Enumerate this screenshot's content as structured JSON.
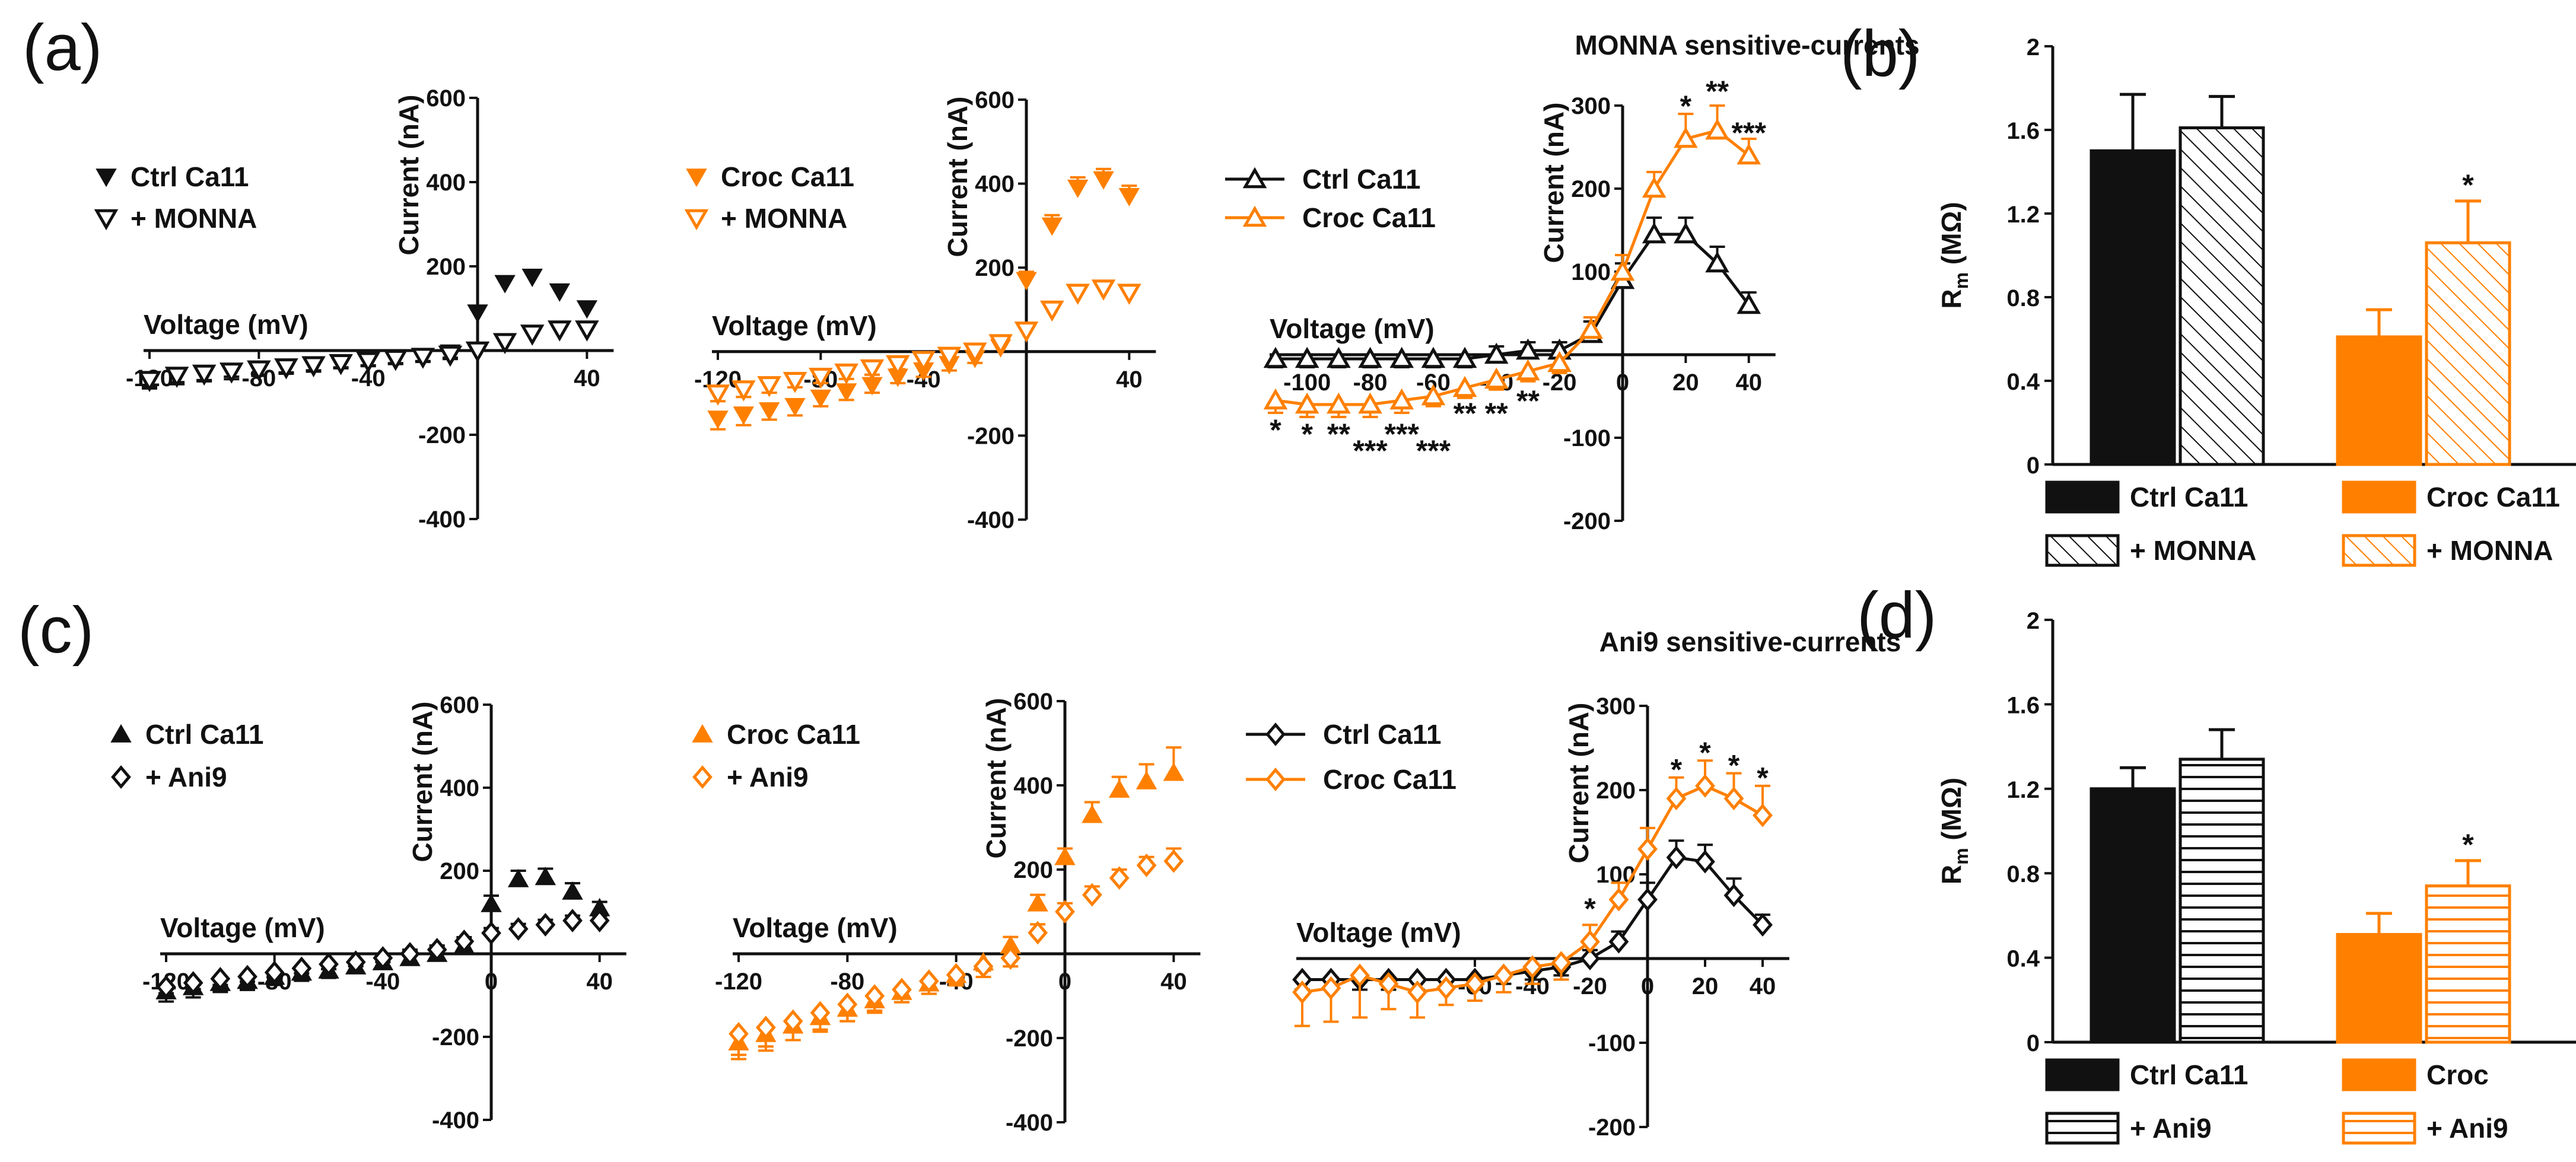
{
  "colors": {
    "ctrl": "#111111",
    "croc": "#ff8000"
  },
  "chart_data": [
    {
      "type": "scatter",
      "panel": "a",
      "id": "a1",
      "ylim": [
        -400,
        600
      ],
      "xlim": [
        -120,
        40
      ],
      "ylabel": "Current (nA)",
      "xlabel": "Voltage (mV)",
      "xticks": [
        "-120",
        "-80",
        "-40",
        "40"
      ],
      "yticks": [
        "600",
        "400",
        "200",
        "-200",
        "-400"
      ],
      "panel_label": "(a)",
      "legend": [
        "Ctrl Ca11",
        "+ MONNA"
      ],
      "series": [
        {
          "name": "Ctrl Ca11",
          "marker": "tri-down-filled",
          "color": "ctrl",
          "x": [
            -120,
            -110,
            -100,
            -90,
            -80,
            -70,
            -60,
            -50,
            -40,
            -30,
            -20,
            -10,
            0,
            10,
            20,
            30,
            40
          ],
          "y": [
            -70,
            -60,
            -55,
            -50,
            -45,
            -40,
            -35,
            -30,
            -25,
            -20,
            -15,
            -5,
            90,
            160,
            175,
            140,
            100
          ],
          "err": [
            20,
            20,
            18,
            18,
            15,
            15,
            15,
            12,
            12,
            12,
            12,
            12,
            15,
            15,
            15,
            15,
            15
          ]
        },
        {
          "name": "+ MONNA",
          "marker": "tri-down-open",
          "color": "ctrl",
          "x": [
            -120,
            -110,
            -100,
            -90,
            -80,
            -70,
            -60,
            -50,
            -40,
            -30,
            -20,
            -10,
            0,
            10,
            20,
            30,
            40
          ],
          "y": [
            -70,
            -60,
            -55,
            -50,
            -45,
            -40,
            -35,
            -30,
            -25,
            -20,
            -15,
            -10,
            0,
            20,
            40,
            50,
            50
          ],
          "err": [
            15,
            15,
            15,
            12,
            12,
            12,
            12,
            10,
            10,
            10,
            10,
            10,
            10,
            10,
            10,
            10,
            12
          ]
        }
      ]
    },
    {
      "type": "scatter",
      "panel": "a",
      "id": "a2",
      "ylim": [
        -400,
        600
      ],
      "xlim": [
        -120,
        40
      ],
      "ylabel": "Current (nA)",
      "xlabel": "Voltage (mV)",
      "xticks": [
        "-120",
        "-80",
        "-40",
        "40"
      ],
      "yticks": [
        "600",
        "400",
        "200",
        "-200",
        "-400"
      ],
      "legend": [
        "Croc Ca11",
        "+ MONNA"
      ],
      "series": [
        {
          "name": "Croc Ca11",
          "marker": "tri-down-filled",
          "color": "croc",
          "x": [
            -120,
            -110,
            -100,
            -90,
            -80,
            -70,
            -60,
            -50,
            -40,
            -30,
            -20,
            -10,
            0,
            10,
            20,
            30,
            40
          ],
          "y": [
            -160,
            -150,
            -140,
            -130,
            -110,
            -95,
            -80,
            -60,
            -45,
            -30,
            -15,
            10,
            170,
            300,
            390,
            410,
            370
          ],
          "err": [
            25,
            25,
            22,
            22,
            20,
            20,
            18,
            15,
            15,
            15,
            12,
            12,
            20,
            25,
            25,
            25,
            25
          ]
        },
        {
          "name": "+ MONNA",
          "marker": "tri-down-open",
          "color": "croc",
          "x": [
            -120,
            -110,
            -100,
            -90,
            -80,
            -70,
            -60,
            -50,
            -40,
            -30,
            -20,
            -10,
            0,
            10,
            20,
            30,
            40
          ],
          "y": [
            -100,
            -90,
            -80,
            -70,
            -60,
            -50,
            -40,
            -30,
            -20,
            -10,
            0,
            20,
            50,
            100,
            140,
            150,
            140
          ],
          "err": [
            18,
            18,
            18,
            15,
            15,
            15,
            15,
            12,
            12,
            12,
            12,
            12,
            15,
            15,
            15,
            15,
            15
          ]
        }
      ]
    },
    {
      "type": "line",
      "panel": "a",
      "id": "a3",
      "ylim": [
        -200,
        300
      ],
      "xlim": [
        -110,
        40
      ],
      "title": "MONNA sensitive-currents",
      "ylabel": "Current (nA)",
      "xlabel": "Voltage (mV)",
      "xticks": [
        "-100",
        "-80",
        "-60",
        "-40",
        "-20",
        "0",
        "20",
        "40"
      ],
      "yticks": [
        "300",
        "200",
        "100",
        "-100",
        "-200"
      ],
      "legend": [
        "Ctrl Ca11",
        "Croc Ca11"
      ],
      "series": [
        {
          "name": "Ctrl Ca11",
          "marker": "tri-up-open",
          "color": "ctrl",
          "x": [
            -110,
            -100,
            -90,
            -80,
            -70,
            -60,
            -50,
            -40,
            -30,
            -20,
            -10,
            0,
            10,
            20,
            30,
            40
          ],
          "y": [
            -5,
            -5,
            -5,
            -5,
            -5,
            -5,
            -5,
            0,
            5,
            5,
            25,
            90,
            145,
            145,
            110,
            60
          ],
          "err": [
            10,
            10,
            10,
            10,
            10,
            10,
            10,
            10,
            10,
            10,
            15,
            20,
            20,
            20,
            20,
            15
          ]
        },
        {
          "name": "Croc Ca11",
          "marker": "tri-up-open",
          "color": "croc",
          "x": [
            -110,
            -100,
            -90,
            -80,
            -70,
            -60,
            -50,
            -40,
            -30,
            -20,
            -10,
            0,
            10,
            20,
            30,
            40
          ],
          "y": [
            -55,
            -60,
            -60,
            -60,
            -55,
            -50,
            -40,
            -30,
            -20,
            -10,
            30,
            100,
            200,
            260,
            270,
            240
          ],
          "err": [
            15,
            15,
            15,
            15,
            15,
            12,
            12,
            12,
            12,
            12,
            15,
            20,
            20,
            30,
            30,
            20
          ]
        }
      ],
      "annotations": [
        {
          "x": -110,
          "y": -90,
          "text": "*"
        },
        {
          "x": -100,
          "y": -95,
          "text": "*"
        },
        {
          "x": -90,
          "y": -95,
          "text": "**"
        },
        {
          "x": -80,
          "y": -115,
          "text": "***"
        },
        {
          "x": -70,
          "y": -95,
          "text": "***"
        },
        {
          "x": -60,
          "y": -115,
          "text": "***"
        },
        {
          "x": -50,
          "y": -70,
          "text": "**"
        },
        {
          "x": -40,
          "y": -70,
          "text": "**"
        },
        {
          "x": -30,
          "y": -55,
          "text": "**"
        },
        {
          "x": 20,
          "y": 300,
          "text": "*"
        },
        {
          "x": 30,
          "y": 318,
          "text": "**"
        },
        {
          "x": 40,
          "y": 268,
          "text": "***"
        }
      ]
    },
    {
      "type": "bar",
      "panel": "b",
      "id": "b",
      "ylim": [
        0,
        2
      ],
      "ylabel": "R_m (MΩ)",
      "ylabel_main": "R",
      "ylabel_sub": "m",
      "ylabel_unit": " (MΩ)",
      "yticks": [
        "0",
        "0.4",
        "0.8",
        "1.2",
        "1.6",
        "2"
      ],
      "panel_label": "(b)",
      "categories": [
        "Ctrl Ca11",
        "+ MONNA",
        "Croc Ca11",
        "+ MONNA"
      ],
      "values": [
        1.5,
        1.61,
        0.61,
        1.06
      ],
      "err": [
        0.27,
        0.15,
        0.13,
        0.2
      ],
      "colors": [
        "ctrl",
        "ctrl",
        "croc",
        "croc"
      ],
      "fills": [
        "solid",
        "hatch",
        "solid",
        "hatch"
      ],
      "stars": [
        "",
        "",
        "",
        "*"
      ],
      "legend": [
        "Ctrl Ca11",
        "Croc Ca11",
        "+ MONNA",
        "+ MONNA"
      ]
    },
    {
      "type": "scatter",
      "panel": "c",
      "id": "c1",
      "ylim": [
        -400,
        600
      ],
      "xlim": [
        -120,
        40
      ],
      "ylabel": "Current (nA)",
      "xlabel": "Voltage (mV)",
      "xticks": [
        "-120",
        "-80",
        "-40",
        "0",
        "40"
      ],
      "yticks": [
        "600",
        "400",
        "200",
        "-200",
        "-400"
      ],
      "panel_label": "(c)",
      "legend": [
        "Ctrl Ca11",
        "+ Ani9"
      ],
      "series": [
        {
          "name": "Ctrl Ca11",
          "marker": "tri-up-filled",
          "color": "ctrl",
          "x": [
            -120,
            -110,
            -100,
            -90,
            -80,
            -70,
            -60,
            -50,
            -40,
            -30,
            -20,
            -10,
            0,
            10,
            20,
            30,
            40
          ],
          "y": [
            -90,
            -80,
            -70,
            -65,
            -55,
            -45,
            -40,
            -30,
            -20,
            -10,
            0,
            20,
            120,
            180,
            185,
            150,
            110
          ],
          "err": [
            25,
            25,
            22,
            22,
            20,
            20,
            18,
            15,
            15,
            15,
            12,
            12,
            20,
            20,
            20,
            20,
            15
          ]
        },
        {
          "name": "+ Ani9",
          "marker": "diamond-open",
          "color": "ctrl",
          "x": [
            -120,
            -110,
            -100,
            -90,
            -80,
            -70,
            -60,
            -50,
            -40,
            -30,
            -20,
            -10,
            0,
            10,
            20,
            30,
            40
          ],
          "y": [
            -80,
            -70,
            -60,
            -55,
            -45,
            -35,
            -25,
            -20,
            -10,
            0,
            10,
            30,
            50,
            60,
            70,
            80,
            80
          ],
          "err": [
            15,
            15,
            15,
            12,
            12,
            12,
            12,
            10,
            10,
            10,
            10,
            10,
            12,
            12,
            12,
            12,
            12
          ]
        }
      ]
    },
    {
      "type": "scatter",
      "panel": "c",
      "id": "c2",
      "ylim": [
        -400,
        600
      ],
      "xlim": [
        -120,
        40
      ],
      "ylabel": "Current (nA)",
      "xlabel": "Voltage (mV)",
      "xticks": [
        "-120",
        "-80",
        "-40",
        "0",
        "40"
      ],
      "yticks": [
        "600",
        "400",
        "200",
        "-200",
        "-400"
      ],
      "legend": [
        "Croc Ca11",
        "+ Ani9"
      ],
      "series": [
        {
          "name": "Croc Ca11",
          "marker": "tri-up-filled",
          "color": "croc",
          "x": [
            -120,
            -110,
            -100,
            -90,
            -80,
            -70,
            -60,
            -50,
            -40,
            -30,
            -20,
            -10,
            0,
            10,
            20,
            30,
            40
          ],
          "y": [
            -210,
            -190,
            -170,
            -150,
            -130,
            -110,
            -90,
            -70,
            -50,
            -20,
            20,
            120,
            230,
            330,
            390,
            410,
            430
          ],
          "err": [
            40,
            40,
            35,
            35,
            30,
            30,
            25,
            25,
            20,
            20,
            20,
            20,
            20,
            30,
            30,
            40,
            60
          ]
        },
        {
          "name": "+ Ani9",
          "marker": "diamond-open",
          "color": "croc",
          "x": [
            -120,
            -110,
            -100,
            -90,
            -80,
            -70,
            -60,
            -50,
            -40,
            -30,
            -20,
            -10,
            0,
            10,
            20,
            30,
            40
          ],
          "y": [
            -190,
            -175,
            -160,
            -140,
            -120,
            -100,
            -85,
            -65,
            -50,
            -30,
            -10,
            50,
            100,
            140,
            180,
            210,
            220
          ],
          "err": [
            50,
            45,
            45,
            40,
            40,
            35,
            30,
            30,
            25,
            25,
            20,
            20,
            20,
            20,
            20,
            20,
            30
          ]
        }
      ]
    },
    {
      "type": "line",
      "panel": "c",
      "id": "c3",
      "ylim": [
        -200,
        300
      ],
      "xlim": [
        -120,
        40
      ],
      "title": "Ani9 sensitive-currents",
      "ylabel": "Current (nA)",
      "xlabel": "Voltage (mV)",
      "xticks": [
        "-60",
        "-40",
        "-20",
        "0",
        "20",
        "40"
      ],
      "yticks": [
        "300",
        "200",
        "100",
        "-100",
        "-200"
      ],
      "legend": [
        "Ctrl Ca11",
        "Croc Ca11"
      ],
      "series": [
        {
          "name": "Ctrl Ca11",
          "marker": "diamond-open",
          "color": "ctrl",
          "x": [
            -120,
            -110,
            -100,
            -90,
            -80,
            -70,
            -60,
            -50,
            -40,
            -30,
            -20,
            -10,
            0,
            10,
            20,
            30,
            40
          ],
          "y": [
            -25,
            -25,
            -25,
            -25,
            -25,
            -25,
            -25,
            -20,
            -15,
            -10,
            0,
            20,
            70,
            120,
            115,
            75,
            40
          ],
          "err": [
            12,
            12,
            12,
            12,
            12,
            12,
            12,
            10,
            10,
            10,
            10,
            12,
            20,
            20,
            20,
            20,
            12
          ]
        },
        {
          "name": "Croc Ca11",
          "marker": "diamond-open",
          "color": "croc",
          "x": [
            -120,
            -110,
            -100,
            -90,
            -80,
            -70,
            -60,
            -50,
            -40,
            -30,
            -20,
            -10,
            0,
            10,
            20,
            30,
            40
          ],
          "y": [
            -40,
            -35,
            -20,
            -30,
            -40,
            -35,
            -30,
            -20,
            -10,
            -5,
            20,
            70,
            130,
            190,
            205,
            190,
            170
          ],
          "err": [
            40,
            40,
            50,
            30,
            30,
            20,
            20,
            20,
            20,
            20,
            20,
            20,
            25,
            25,
            30,
            30,
            35
          ]
        }
      ],
      "annotations": [
        {
          "x": -20,
          "y": 60,
          "text": "*"
        },
        {
          "x": 10,
          "y": 225,
          "text": "*"
        },
        {
          "x": 20,
          "y": 245,
          "text": "*"
        },
        {
          "x": 30,
          "y": 230,
          "text": "*"
        },
        {
          "x": 40,
          "y": 215,
          "text": "*"
        }
      ]
    },
    {
      "type": "bar",
      "panel": "d",
      "id": "d",
      "ylim": [
        0,
        2
      ],
      "ylabel": "R_m (MΩ)",
      "ylabel_main": "R",
      "ylabel_sub": "m",
      "ylabel_unit": " (MΩ)",
      "yticks": [
        "0",
        "0.4",
        "0.8",
        "1.2",
        "1.6",
        "2"
      ],
      "panel_label": "(d)",
      "categories": [
        "Ctrl Ca11",
        "+ Ani9",
        "Croc",
        "+ Ani9"
      ],
      "values": [
        1.2,
        1.34,
        0.51,
        0.74
      ],
      "err": [
        0.1,
        0.14,
        0.1,
        0.12
      ],
      "colors": [
        "ctrl",
        "ctrl",
        "croc",
        "croc"
      ],
      "fills": [
        "solid",
        "hlines",
        "solid",
        "hlines"
      ],
      "stars": [
        "",
        "",
        "",
        "*"
      ],
      "legend": [
        "Ctrl Ca11",
        "Croc",
        "+ Ani9",
        "+ Ani9"
      ]
    }
  ]
}
